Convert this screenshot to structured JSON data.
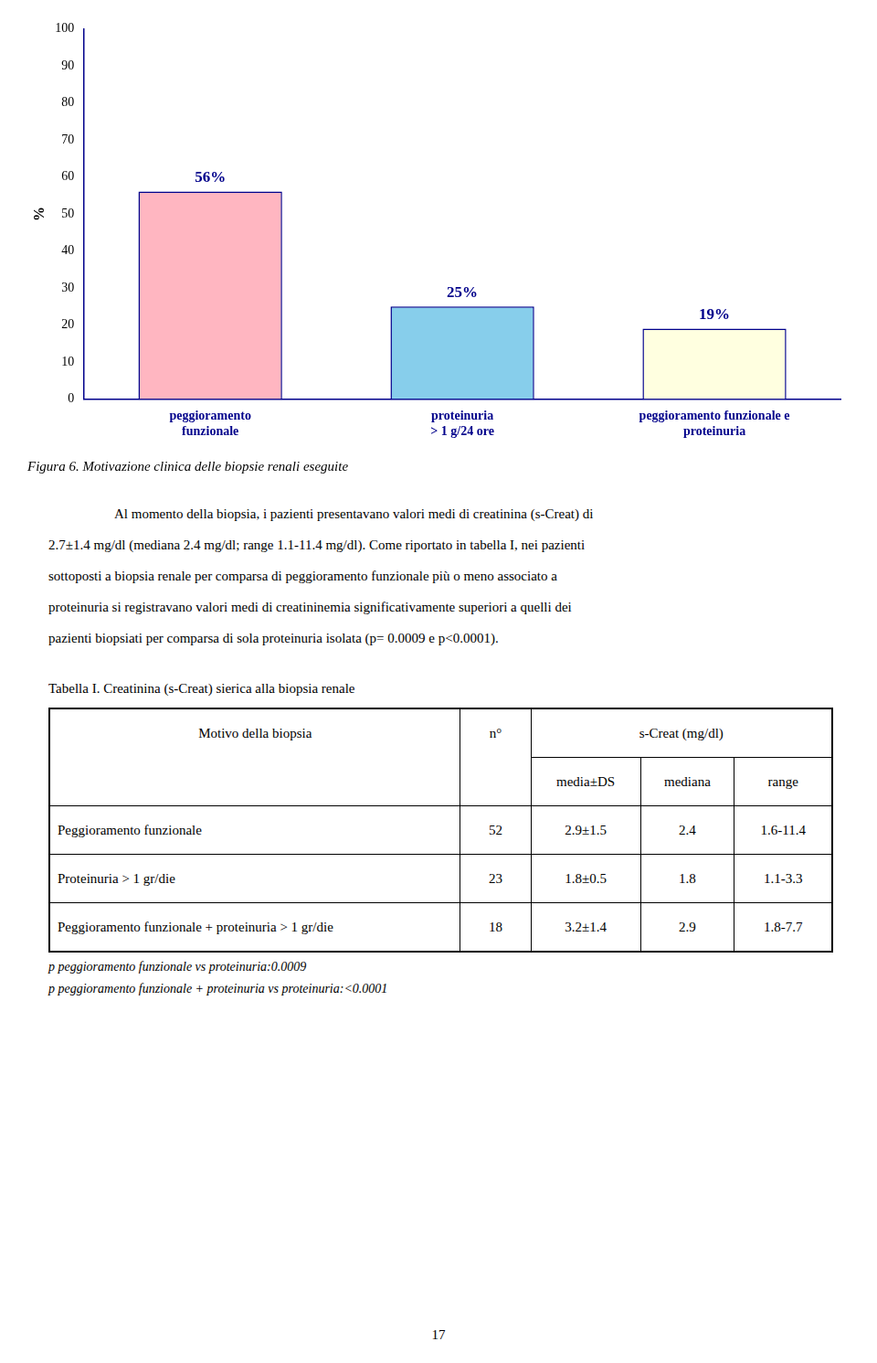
{
  "chart_data": {
    "type": "bar",
    "title": "Figura 6. Motivazione clinica delle biopsie renali eseguite",
    "categories": [
      "peggioramento\nfunzionale",
      "proteinuria\n> 1 g/24 ore",
      "peggioramento funzionale e\nproteinuria"
    ],
    "values": [
      56,
      25,
      19
    ],
    "value_labels": [
      "56%",
      "25%",
      "19%"
    ],
    "data_labels": true,
    "colors": [
      "#FFB6C1",
      "#87CEEB",
      "#FFFFE0"
    ],
    "ylabel": "%",
    "ylim": [
      0,
      100
    ],
    "yticks": [
      0,
      10,
      20,
      30,
      40,
      50,
      60,
      70,
      80,
      90,
      100
    ],
    "grid": false
  },
  "body_lines": [
    "Al momento della biopsia, i pazienti presentavano valori medi di creatinina (s-Creat) di",
    "2.7±1.4 mg/dl (mediana 2.4 mg/dl; range 1.1-11.4 mg/dl). Come riportato in tabella I, nei pazienti",
    "sottoposti a biopsia renale per comparsa di peggioramento funzionale più o meno associato a",
    "proteinuria si registravano valori medi di creatininemia significativamente superiori a quelli dei",
    "pazienti biopsiati per comparsa di sola proteinuria isolata (p= 0.0009 e p<0.0001)."
  ],
  "table": {
    "title": "Tabella I. Creatinina (s-Creat) sierica alla biopsia renale",
    "header": [
      "Motivo della biopsia",
      "n°",
      "s-Creat (mg/dl)"
    ],
    "subheader": [
      "media±DS",
      "mediana",
      "range"
    ],
    "rows": [
      [
        "Peggioramento funzionale",
        "52",
        "2.9±1.5",
        "2.4",
        "1.6-11.4"
      ],
      [
        "Proteinuria > 1 gr/die",
        "23",
        "1.8±0.5",
        "1.8",
        "1.1-3.3"
      ],
      [
        "Peggioramento funzionale + proteinuria > 1 gr/die",
        "18",
        "3.2±1.4",
        "2.9",
        "1.8-7.7"
      ]
    ],
    "footnotes": [
      "p peggioramento funzionale vs proteinuria:0.0009",
      "p peggioramento funzionale + proteinuria vs proteinuria:<0.0001"
    ]
  },
  "page_number": "17"
}
